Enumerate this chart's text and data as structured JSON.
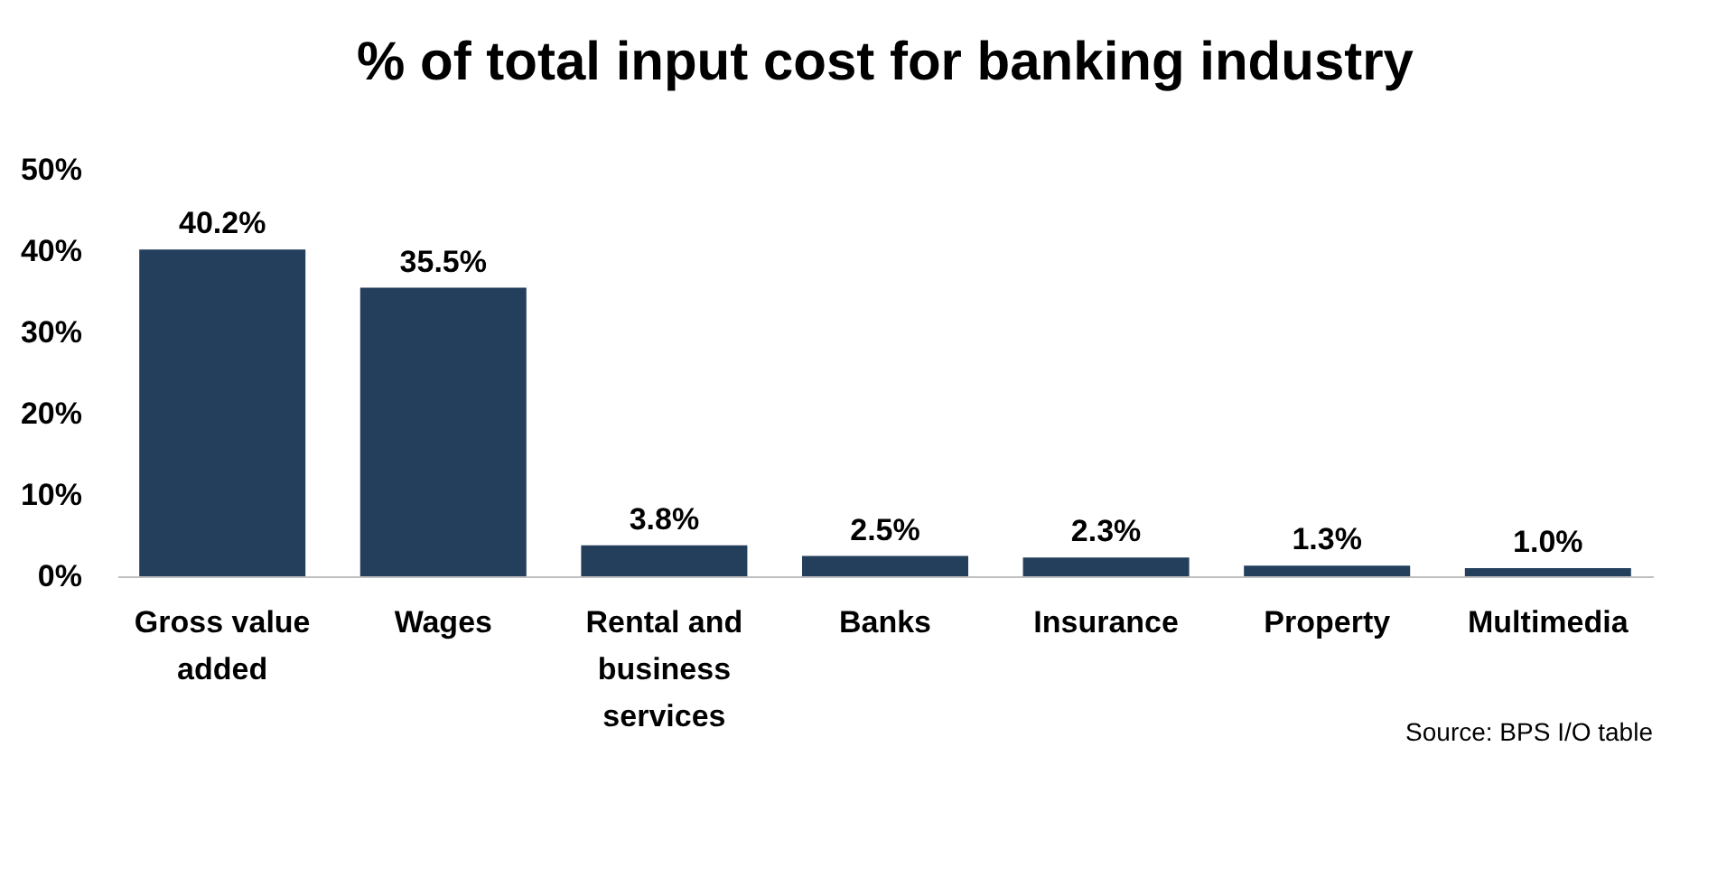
{
  "chart_data": {
    "type": "bar",
    "title": "% of total input cost for banking industry",
    "categories": [
      "Gross value added",
      "Wages",
      "Rental and business services",
      "Banks",
      "Insurance",
      "Property",
      "Multimedia"
    ],
    "values": [
      40.2,
      35.5,
      3.8,
      2.5,
      2.3,
      1.3,
      1.0
    ],
    "value_labels": [
      "40.2%",
      "35.5%",
      "3.8%",
      "2.5%",
      "2.3%",
      "1.3%",
      "1.0%"
    ],
    "color": "#243f5c",
    "ylim": [
      0,
      50
    ],
    "yticks": [
      {
        "value": 0,
        "label": "0%"
      },
      {
        "value": 10,
        "label": "10%"
      },
      {
        "value": 20,
        "label": "20%"
      },
      {
        "value": 30,
        "label": "30%"
      },
      {
        "value": 40,
        "label": "40%"
      },
      {
        "value": 50,
        "label": "50%"
      }
    ],
    "grid": false,
    "annotations": [
      "Source: BPS I/O table"
    ]
  }
}
